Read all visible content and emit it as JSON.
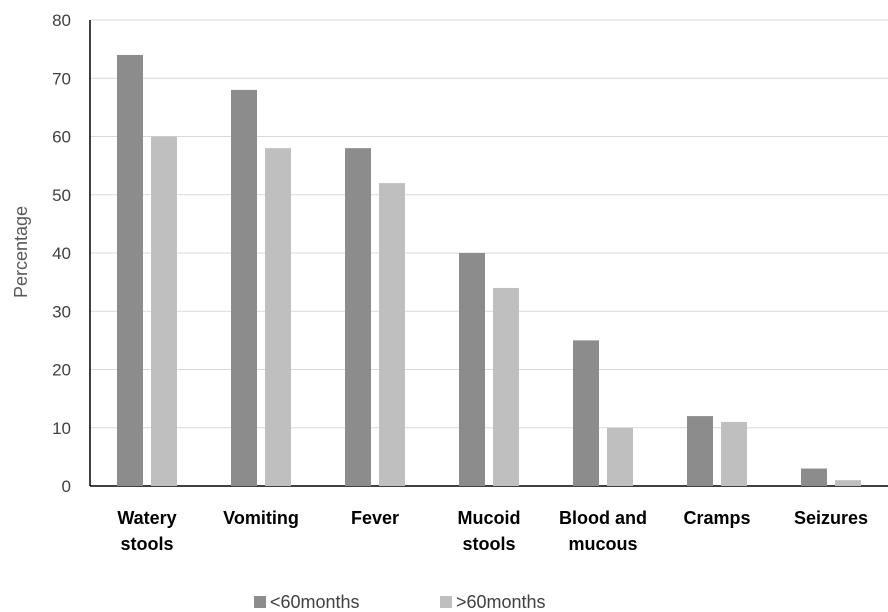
{
  "chart_data": {
    "type": "bar",
    "title": "",
    "xlabel": "",
    "ylabel": "Percentage",
    "ylim": [
      0,
      80
    ],
    "yticks": [
      0,
      10,
      20,
      30,
      40,
      50,
      60,
      70,
      80
    ],
    "grid": true,
    "legend_position": "bottom",
    "categories": [
      [
        "Watery",
        "stools"
      ],
      [
        "Vomiting"
      ],
      [
        "Fever"
      ],
      [
        "Mucoid",
        "stools"
      ],
      [
        "Blood and",
        "mucous"
      ],
      [
        "Cramps"
      ],
      [
        "Seizures"
      ]
    ],
    "series": [
      {
        "name": "<60months",
        "color": "#8c8c8c",
        "values": [
          74,
          68,
          58,
          40,
          25,
          12,
          3
        ]
      },
      {
        "name": ">60months",
        "color": "#bfbfbf",
        "values": [
          60,
          58,
          52,
          34,
          10,
          11,
          1
        ]
      }
    ]
  }
}
